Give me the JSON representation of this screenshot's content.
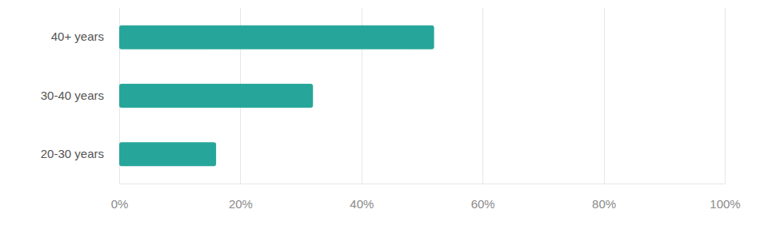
{
  "chart_data": {
    "type": "bar",
    "orientation": "horizontal",
    "categories": [
      "40+ years",
      "30-40 years",
      "20-30 years"
    ],
    "values": [
      52,
      32,
      16
    ],
    "color": "#26a69a",
    "xlim": [
      0,
      100
    ],
    "xticks": [
      {
        "value": 0,
        "label": "0%"
      },
      {
        "value": 20,
        "label": "20%"
      },
      {
        "value": 40,
        "label": "40%"
      },
      {
        "value": 60,
        "label": "60%"
      },
      {
        "value": 80,
        "label": "80%"
      },
      {
        "value": 100,
        "label": "100%"
      }
    ],
    "grid": true
  }
}
